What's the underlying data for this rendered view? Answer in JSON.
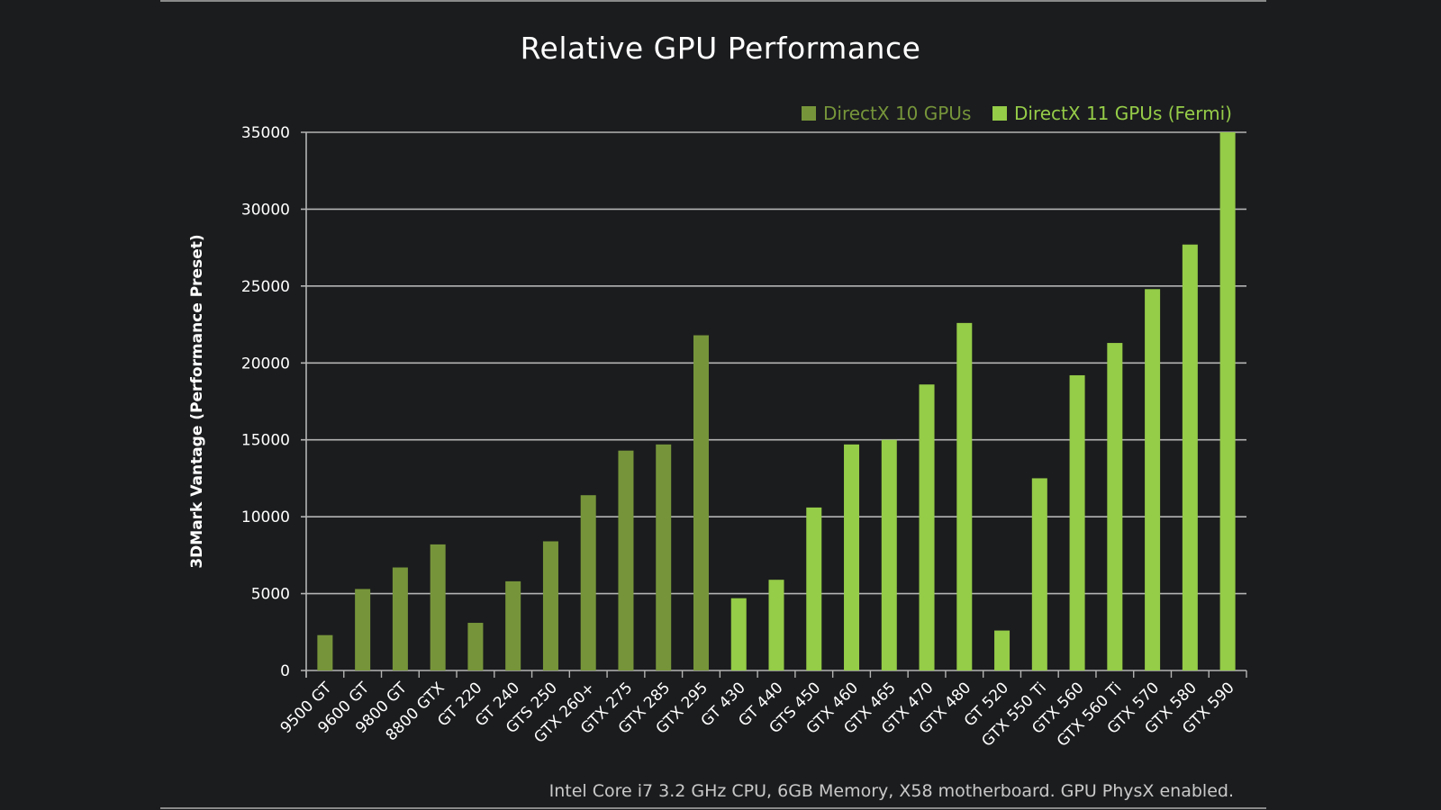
{
  "chart_data": {
    "type": "bar",
    "title": "Relative GPU Performance",
    "ylabel": "3DMark Vantage (Performance Preset)",
    "xlabel": "",
    "ylim": [
      0,
      35000
    ],
    "yticks": [
      0,
      5000,
      10000,
      15000,
      20000,
      25000,
      30000,
      35000
    ],
    "grid": true,
    "legend_position": "top-right",
    "footnote": "Intel Core i7 3.2 GHz CPU, 6GB Memory, X58 motherboard. GPU PhysX enabled.",
    "categories": [
      "9500 GT",
      "9600 GT",
      "9800 GT",
      "8800 GTX",
      "GT 220",
      "GT 240",
      "GTS 250",
      "GTX 260+",
      "GTX 275",
      "GTX 285",
      "GTX 295",
      "GT 430",
      "GT 440",
      "GTS 450",
      "GTX 460",
      "GTX 465",
      "GTX 470",
      "GTX 480",
      "GT 520",
      "GTX 550 Ti",
      "GTX 560",
      "GTX 560 Ti",
      "GTX 570",
      "GTX 580",
      "GTX 590"
    ],
    "series": [
      {
        "name": "DirectX 10 GPUs",
        "color": "#76953a",
        "values": [
          2300,
          5300,
          6700,
          8200,
          3100,
          5800,
          8400,
          11400,
          14300,
          14700,
          21800,
          null,
          null,
          null,
          null,
          null,
          null,
          null,
          null,
          null,
          null,
          null,
          null,
          null,
          null
        ]
      },
      {
        "name": "DirectX 11 GPUs (Fermi)",
        "color": "#95cc48",
        "values": [
          null,
          null,
          null,
          null,
          null,
          null,
          null,
          null,
          null,
          null,
          null,
          4700,
          5900,
          10600,
          14700,
          15000,
          18600,
          22600,
          2600,
          12500,
          19200,
          21300,
          24800,
          27700,
          35000
        ]
      }
    ]
  },
  "colors": {
    "background": "#1b1c1e",
    "gridline": "#b4b4b4"
  }
}
